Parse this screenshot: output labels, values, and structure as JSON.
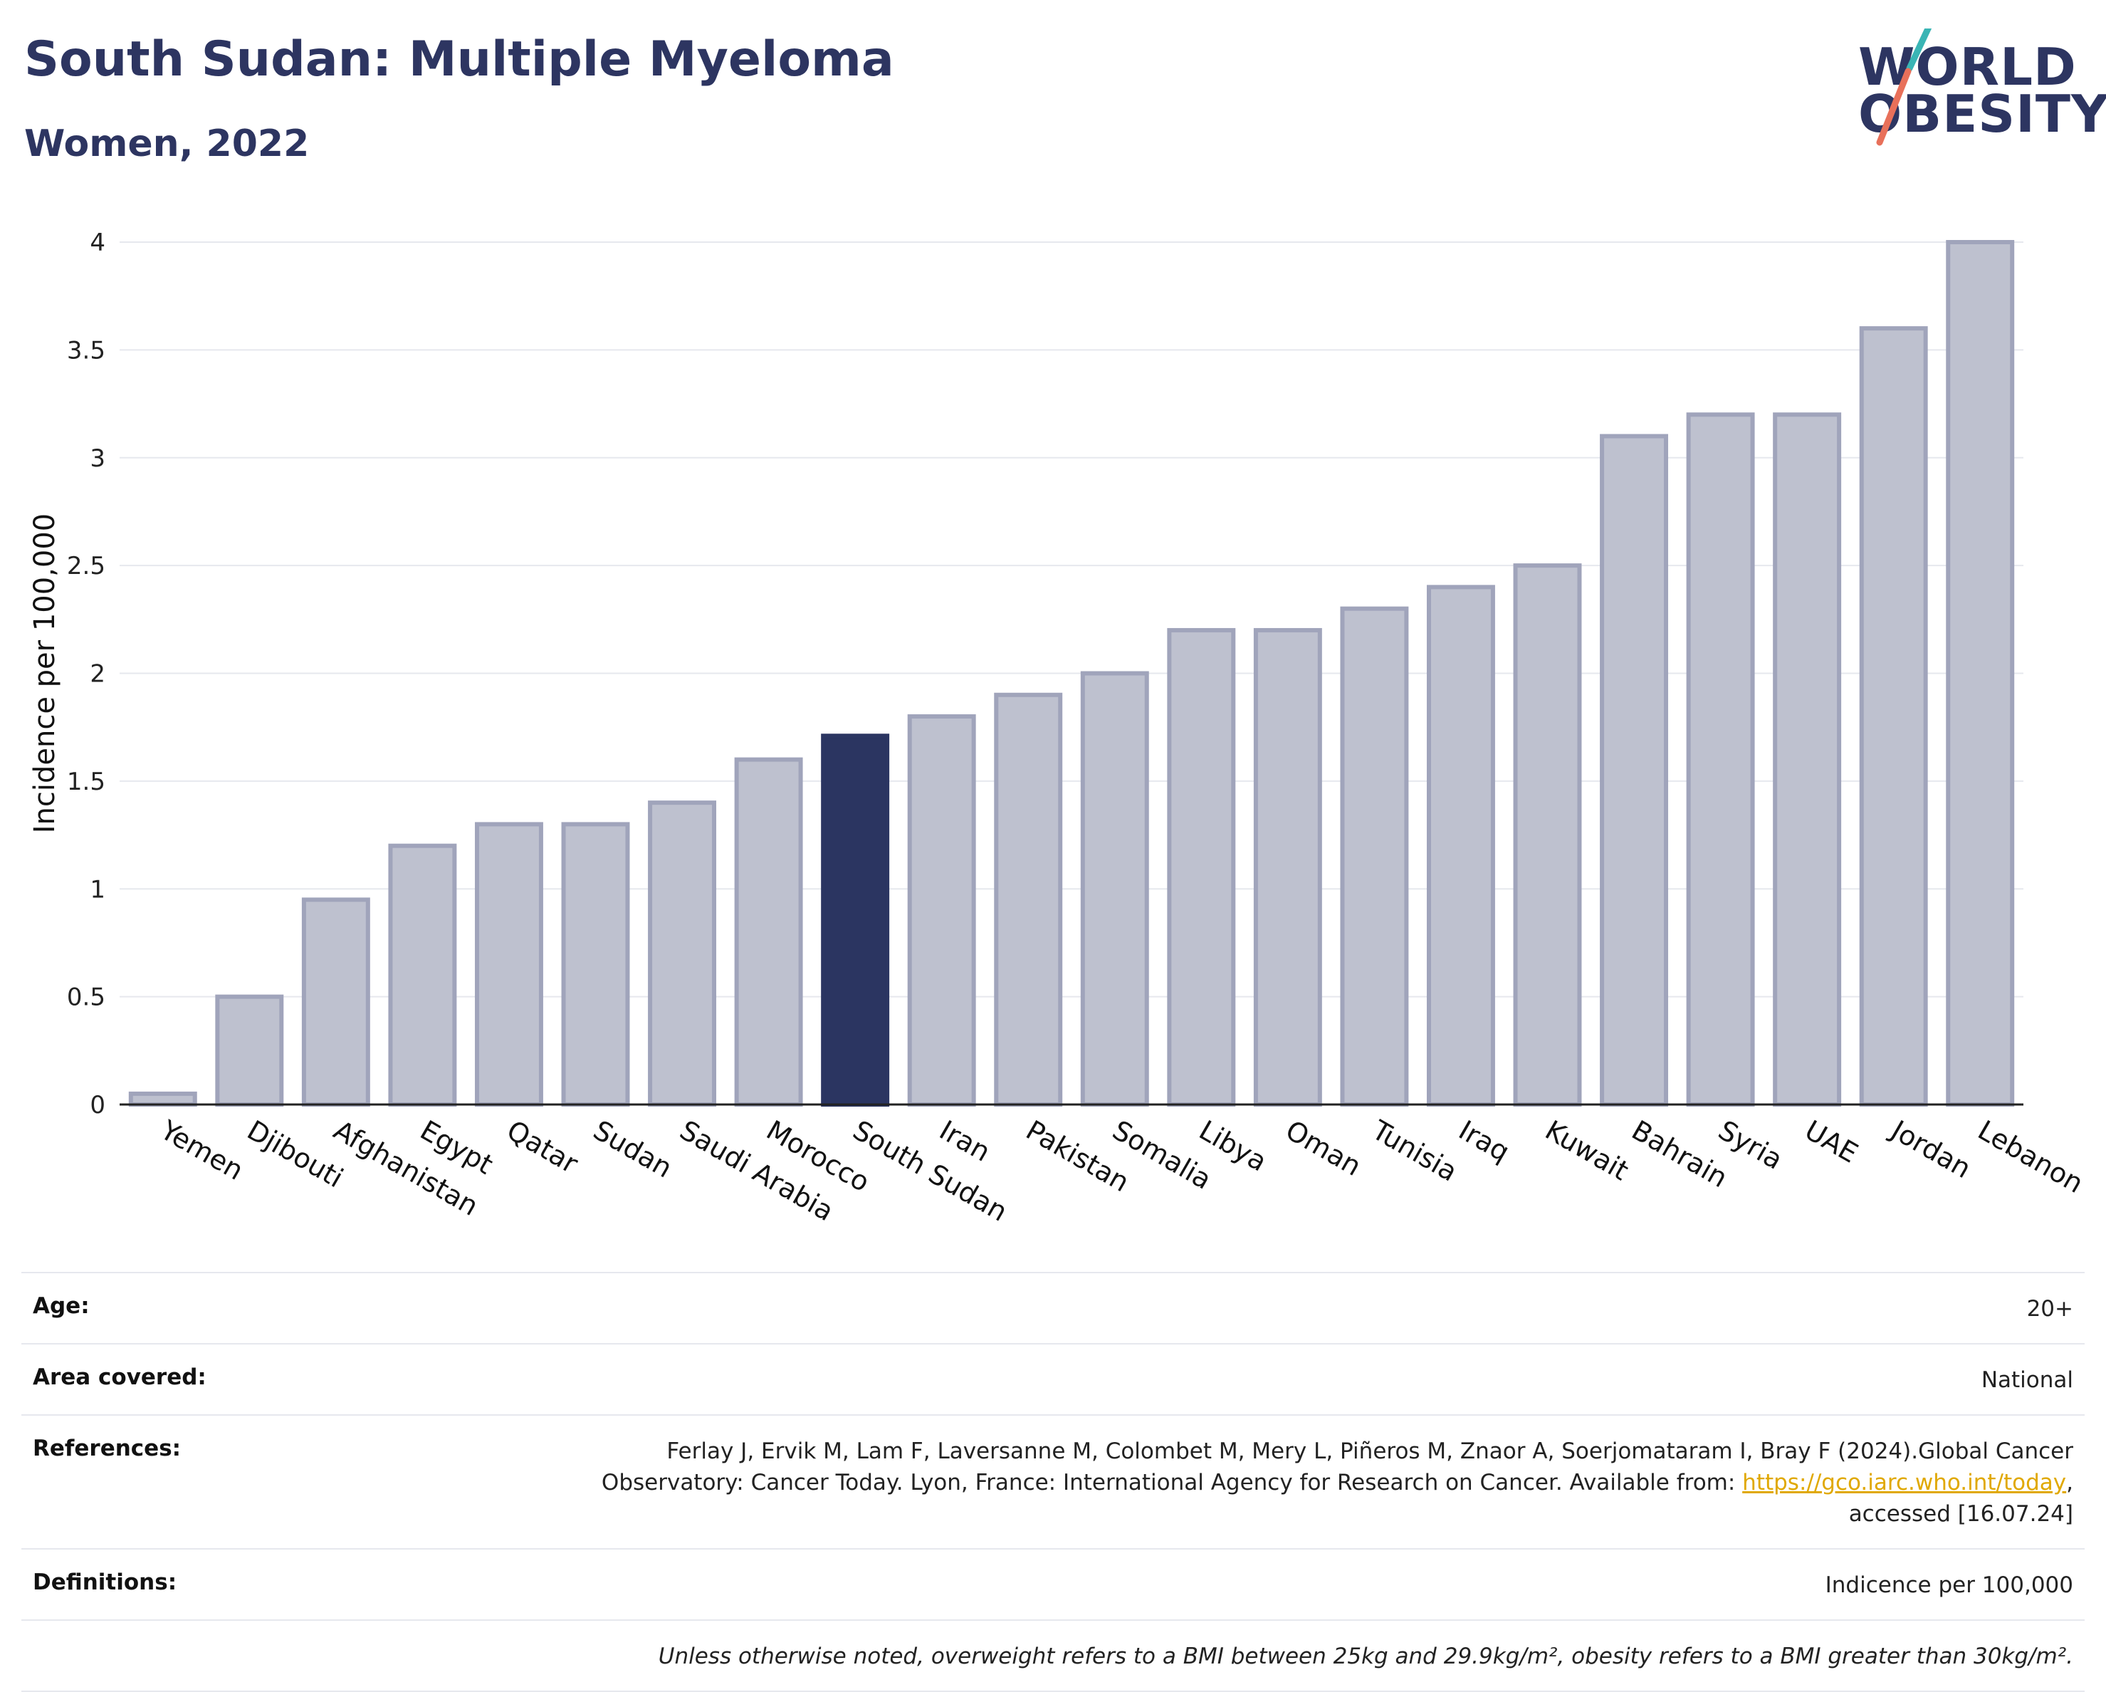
{
  "header": {
    "title": "South Sudan: Multiple Myeloma",
    "subtitle": "Women, 2022"
  },
  "logo": {
    "line1": "WORLD",
    "line2": "OBESITY",
    "text_color": "#2d3561",
    "slash_colors": [
      "#3ab5b5",
      "#e8705a"
    ]
  },
  "chart_data": {
    "type": "bar",
    "ylabel": "Incidence per 100,000",
    "ylim": [
      0,
      4
    ],
    "yticks": [
      0,
      0.5,
      1,
      1.5,
      2,
      2.5,
      3,
      3.5,
      4
    ],
    "grid": true,
    "highlight": "South Sudan",
    "colors": {
      "bar_fill": "#bec1cf",
      "bar_edge": "#a0a4bb",
      "highlight_fill": "#2b3561",
      "grid": "#e6e8ee"
    },
    "categories": [
      "Yemen",
      "Djibouti",
      "Afghanistan",
      "Egypt",
      "Qatar",
      "Sudan",
      "Saudi Arabia",
      "Morocco",
      "South Sudan",
      "Iran",
      "Pakistan",
      "Somalia",
      "Libya",
      "Oman",
      "Tunisia",
      "Iraq",
      "Kuwait",
      "Bahrain",
      "Syria",
      "UAE",
      "Jordan",
      "Lebanon"
    ],
    "values": [
      0.05,
      0.5,
      0.95,
      1.2,
      1.3,
      1.3,
      1.4,
      1.6,
      1.71,
      1.8,
      1.9,
      2.0,
      2.2,
      2.2,
      2.3,
      2.4,
      2.5,
      3.1,
      3.2,
      3.2,
      3.6,
      4.0
    ]
  },
  "meta": {
    "age_label": "Age:",
    "age_value": "20+",
    "area_label": "Area covered:",
    "area_value": "National",
    "references_label": "References:",
    "references_line1": "Ferlay J, Ervik M, Lam F, Laversanne M, Colombet M, Mery L, Piñeros M, Znaor A, Soerjomataram I, Bray F (2024).Global Cancer",
    "references_line2_pre": "Observatory: Cancer Today. Lyon, France: International Agency for Research on Cancer. Available from: ",
    "references_link": "https://gco.iarc.who.int/today",
    "references_line2_post": ",",
    "references_line3": "accessed [16.07.24]",
    "definitions_label": "Definitions:",
    "definitions_value": "Indicence per 100,000",
    "note": "Unless otherwise noted, overweight refers to a BMI between 25kg and 29.9kg/m², obesity refers to a BMI greater than 30kg/m².",
    "link_color": "#e0a800"
  }
}
